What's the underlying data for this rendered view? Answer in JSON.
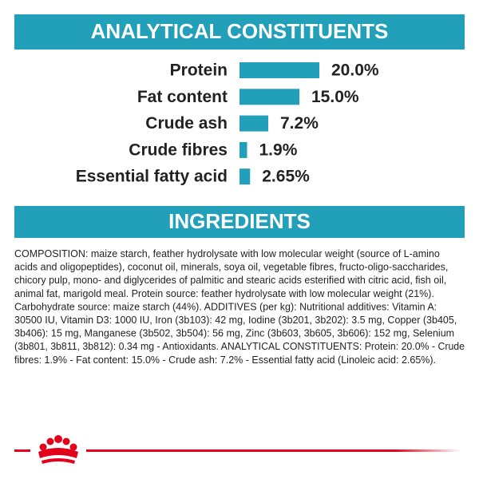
{
  "chart_data": {
    "type": "bar",
    "title": "ANALYTICAL CONSTITUENTS",
    "categories": [
      "Protein",
      "Fat content",
      "Crude ash",
      "Crude fibres",
      "Essential fatty acid"
    ],
    "values": [
      20.0,
      15.0,
      7.2,
      1.9,
      2.65
    ],
    "value_labels": [
      "20.0%",
      "15.0%",
      "7.2%",
      "1.9%",
      "2.65%"
    ],
    "color": "#22a0b9"
  },
  "ingredients": {
    "title": "INGREDIENTS",
    "lines": [
      "COMPOSITION: maize starch, feather hydrolysate with low molecular weight (source of L-amino",
      "acids and oligopeptides), coconut oil, minerals, soya oil, vegetable fibres, fructo-oligo-saccharides,",
      "chicory pulp, mono- and diglycerides of palmitic and stearic acids esterified with citric acid, fish oil,",
      "animal fat, marigold meal. Protein source: feather hydrolysate with low molecular weight (21%).",
      "Carbohydrate source: maize starch (44%). ADDITIVES (per kg): Nutritional additives: Vitamin A:",
      "30500 IU, Vitamin D3: 1000 IU, Iron (3b103): 42 mg, Iodine (3b201, 3b202): 3.5 mg, Copper (3b405,",
      "3b406): 15 mg, Manganese (3b502, 3b504): 56 mg, Zinc (3b603, 3b605, 3b606): 152 mg, Selenium",
      "(3b801, 3b811, 3b812): 0.34 mg - Antioxidants. ANALYTICAL CONSTITUENTS: Protein: 20.0% - Crude",
      "fibres: 1.9% - Fat content: 15.0% - Crude ash: 7.2% - Essential fatty acid (Linoleic acid: 2.65%)."
    ]
  }
}
